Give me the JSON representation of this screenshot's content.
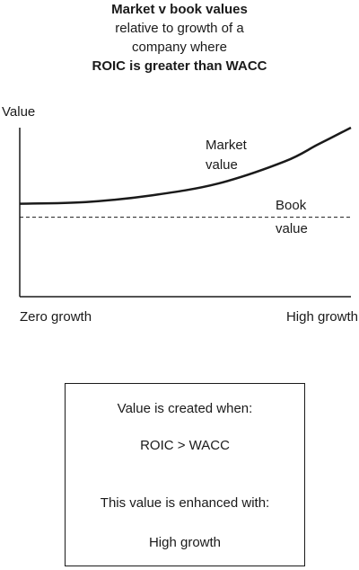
{
  "title": {
    "line1": "Market v book values",
    "line2": "relative to growth of a",
    "line3": "company where",
    "line4": "ROIC is greater than WACC"
  },
  "chart_data": {
    "type": "line",
    "ylabel": "Value",
    "x_start_label": "Zero growth",
    "x_end_label": "High growth",
    "series": [
      {
        "name_line1": "Market",
        "name_line2": "value",
        "style": "solid",
        "x": [
          0,
          0.2,
          0.4,
          0.6,
          0.8,
          0.9,
          1.0
        ],
        "y": [
          0.55,
          0.56,
          0.6,
          0.67,
          0.8,
          0.9,
          1.0
        ]
      },
      {
        "name_line1": "Book",
        "name_line2": "value",
        "style": "dashed",
        "x": [
          0,
          1.0
        ],
        "y": [
          0.47,
          0.47
        ]
      }
    ],
    "xlim": [
      0,
      1
    ],
    "ylim": [
      0,
      1
    ]
  },
  "info_box": {
    "line1": "Value is created when:",
    "line2": "ROIC > WACC",
    "line3": "This value is enhanced with:",
    "line4": "High growth"
  },
  "colors": {
    "ink": "#1a1a1a",
    "background": "#ffffff"
  }
}
